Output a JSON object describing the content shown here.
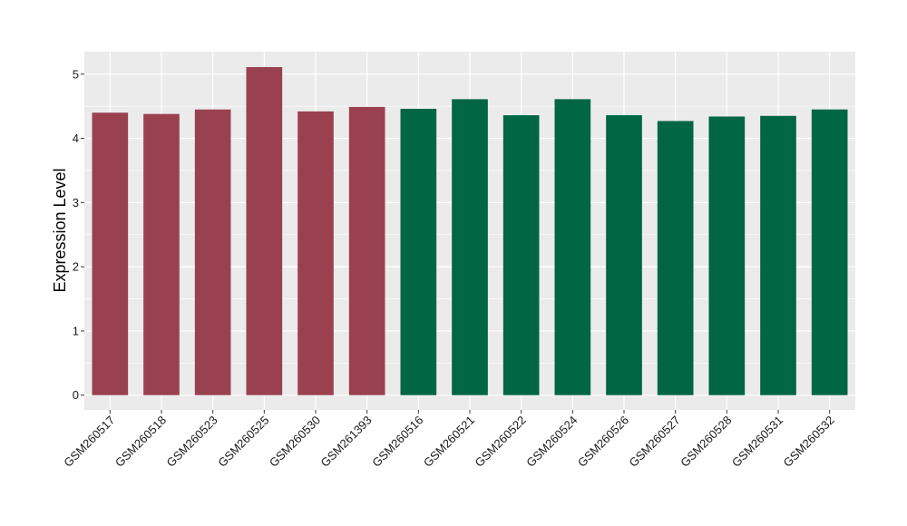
{
  "chart_data": {
    "type": "bar",
    "title": "",
    "xlabel": "",
    "ylabel": "Expression Level",
    "ylim": [
      -0.23,
      5.35
    ],
    "yticks": [
      0,
      1,
      2,
      3,
      4,
      5
    ],
    "grid": true,
    "legend": "none",
    "categories": [
      "GSM260517",
      "GSM260518",
      "GSM260523",
      "GSM260525",
      "GSM260530",
      "GSM261393",
      "GSM260516",
      "GSM260521",
      "GSM260522",
      "GSM260524",
      "GSM260526",
      "GSM260527",
      "GSM260528",
      "GSM260531",
      "GSM260532"
    ],
    "values": [
      4.4,
      4.38,
      4.45,
      5.11,
      4.42,
      4.49,
      4.46,
      4.61,
      4.36,
      4.61,
      4.36,
      4.27,
      4.34,
      4.35,
      4.45
    ],
    "group_index": [
      0,
      0,
      0,
      0,
      0,
      0,
      1,
      1,
      1,
      1,
      1,
      1,
      1,
      1,
      1
    ],
    "group_colors": [
      "#9a4150",
      "#006644"
    ],
    "panel_background": "#ebebeb",
    "grid_color": "#ffffff"
  }
}
